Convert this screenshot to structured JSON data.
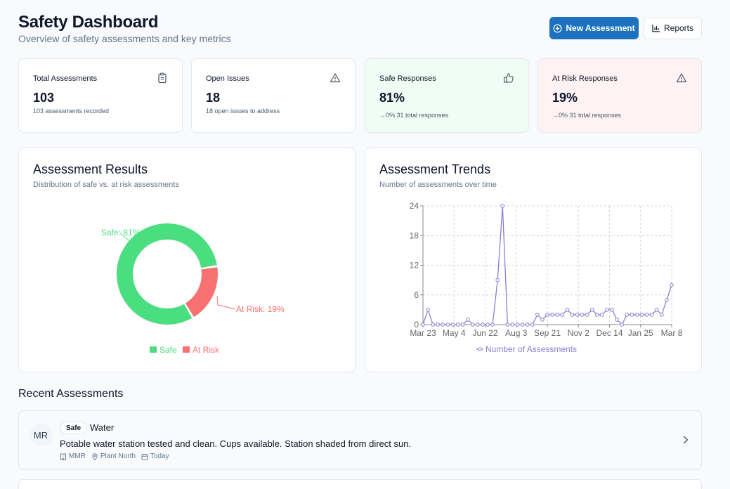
{
  "header": {
    "title": "Safety Dashboard",
    "subtitle": "Overview of safety assessments and key metrics",
    "new_assessment_label": "New Assessment",
    "reports_label": "Reports"
  },
  "stats": [
    {
      "label": "Total Assessments",
      "value": "103",
      "note": "103 assessments recorded",
      "icon": "clipboard-icon"
    },
    {
      "label": "Open Issues",
      "value": "18",
      "note": "18 open issues to address",
      "icon": "warning-icon"
    },
    {
      "label": "Safe Responses",
      "value": "81%",
      "note": "→0% 31 total responses",
      "icon": "thumbs-up-icon"
    },
    {
      "label": "At Risk Responses",
      "value": "19%",
      "note": "→0% 31 total responses",
      "icon": "warning-icon"
    }
  ],
  "results_panel": {
    "title": "Assessment Results",
    "subtitle": "Distribution of safe vs. at risk assessments"
  },
  "trends_panel": {
    "title": "Assessment Trends",
    "subtitle": "Number of assessments over time"
  },
  "colors": {
    "primary": "#1d72c0",
    "safe": "#4ade80",
    "at_risk": "#f87171",
    "trend_line": "#8b7fd4"
  },
  "chart_data": [
    {
      "type": "pie",
      "donut": true,
      "categories": [
        "Safe",
        "At Risk"
      ],
      "values": [
        81,
        19
      ],
      "data_labels": [
        "Safe: 81%",
        "At Risk: 19%"
      ],
      "legend": [
        "Safe",
        "At Risk"
      ],
      "legend_position": "bottom"
    },
    {
      "type": "line",
      "x_tick_labels": [
        "Mar 23",
        "May 4",
        "Jun 22",
        "Aug 3",
        "Sep 21",
        "Nov 2",
        "Dec 14",
        "Jan 25",
        "Mar 8"
      ],
      "yticks": [
        0,
        6,
        12,
        18,
        24
      ],
      "ylim": [
        0,
        24
      ],
      "grid": true,
      "legend_position": "bottom",
      "series": [
        {
          "name": "Number of Assessments",
          "values": [
            0,
            3,
            0,
            0,
            0,
            0,
            0,
            0,
            0,
            1,
            0,
            0,
            0,
            0,
            0,
            9,
            24,
            0,
            0,
            0,
            0,
            0,
            0,
            2,
            1,
            2,
            2,
            2,
            2,
            3,
            2,
            2,
            2,
            2,
            3,
            2,
            2,
            3,
            3,
            1,
            0,
            2,
            2,
            2,
            2,
            2,
            2,
            3,
            2,
            5,
            8
          ]
        }
      ]
    }
  ],
  "recent": {
    "title": "Recent Assessments",
    "items": [
      {
        "initials": "MR",
        "status": "Safe",
        "title": "Water",
        "description": "Potable water station tested and clean. Cups available. Station shaded from direct sun.",
        "assessor": "MMR",
        "location": "Plant North",
        "date": "Today"
      }
    ]
  }
}
